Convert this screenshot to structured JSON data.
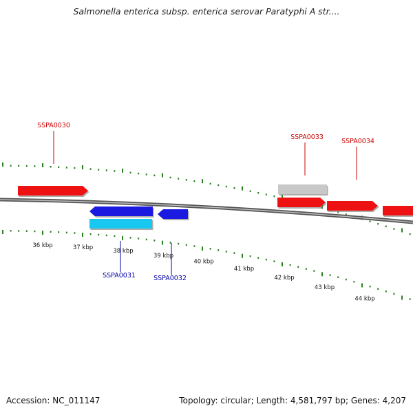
{
  "title": "Salmonella enterica subsp. enterica serovar Paratyphi A str....",
  "footer": {
    "accession": "Accession: NC_011147",
    "stats": "Topology: circular; Length: 4,581,797 bp; Genes: 4,207"
  },
  "scale": {
    "labels": [
      "36 kbp",
      "37 kbp",
      "38 kbp",
      "39 kbp",
      "40 kbp",
      "41 kbp",
      "42 kbp",
      "43 kbp",
      "44 kbp"
    ],
    "tick_color": "#2a7f1f"
  },
  "genes": [
    {
      "name": "SSPA0030",
      "strand": "forward",
      "color": "#ee1111",
      "label_color": "#cc0000"
    },
    {
      "name": "SSPA0031",
      "strand": "reverse",
      "color": "#1a1ae0",
      "label_color": "#0000aa"
    },
    {
      "name": "SSPA0032",
      "strand": "reverse",
      "color": "#1a1ae0",
      "label_color": "#0000aa"
    },
    {
      "name": "SSPA0033",
      "strand": "forward",
      "color": "#ee1111",
      "label_color": "#cc0000"
    },
    {
      "name": "SSPA0034",
      "strand": "forward",
      "color": "#ee1111",
      "label_color": "#cc0000"
    }
  ],
  "extra_features": [
    {
      "kind": "unlabeled-reverse",
      "color": "#19c8f0"
    },
    {
      "kind": "unlabeled-forward",
      "color": "#c8c8c8"
    },
    {
      "kind": "unlabeled-forward-edge",
      "color": "#ee1111"
    }
  ]
}
